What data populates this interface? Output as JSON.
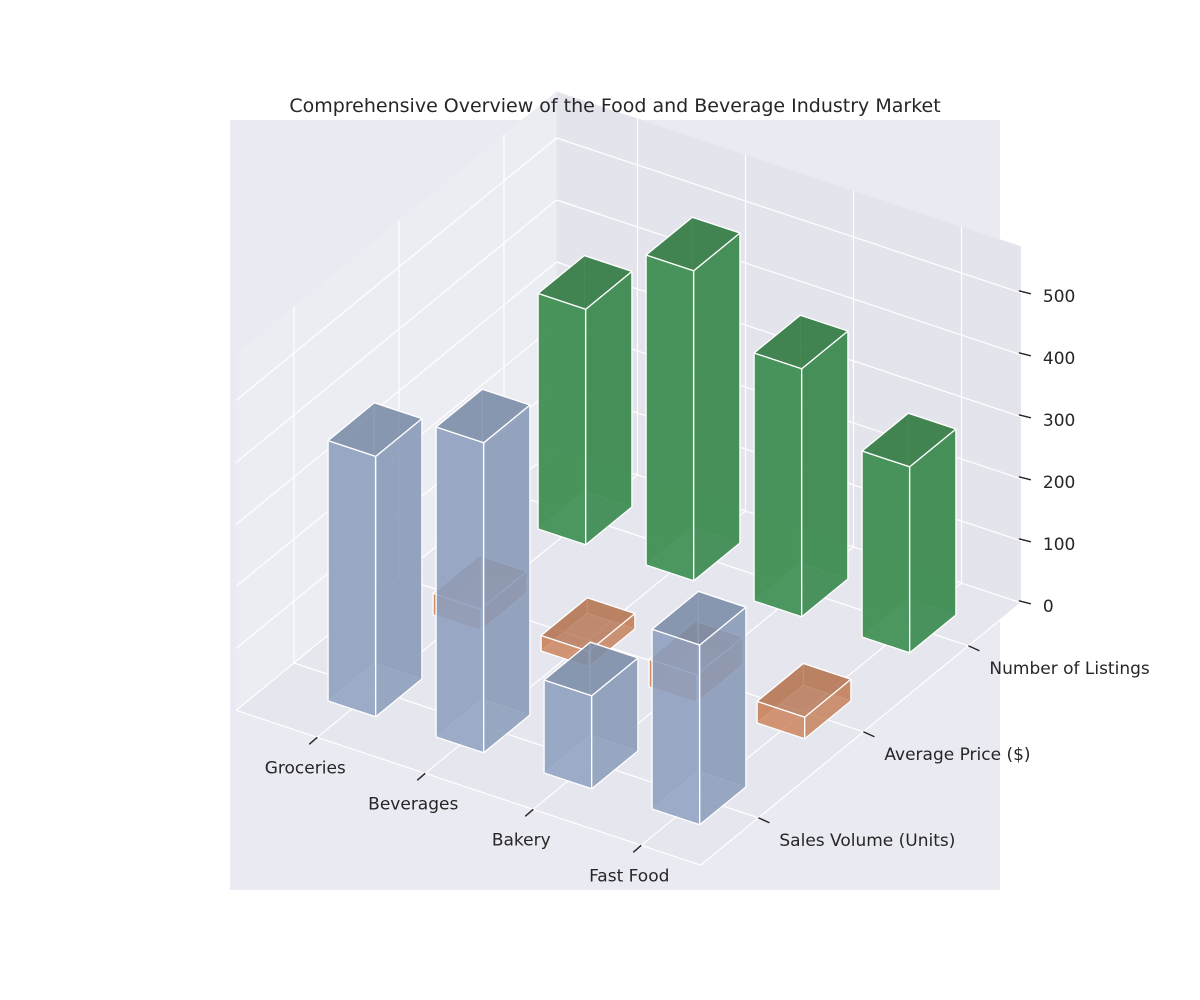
{
  "chart_data": {
    "type": "bar3d",
    "title": "Comprehensive Overview of the Food and Beverage Industry Market",
    "categories": [
      "Groceries",
      "Beverages",
      "Bakery",
      "Fast Food"
    ],
    "metrics": [
      "Sales Volume (Units)",
      "Average Price ($)",
      "Number of Listings"
    ],
    "zticks": [
      "0",
      "100",
      "200",
      "300",
      "400",
      "500"
    ],
    "zlim": [
      0,
      500
    ],
    "grid": true,
    "series": [
      {
        "name": "Sales Volume (Units)",
        "color": "#8ea0bf",
        "values": [
          420,
          500,
          150,
          290
        ]
      },
      {
        "name": "Average Price ($)",
        "color": "#c8784c",
        "values": [
          35,
          25,
          45,
          35
        ]
      },
      {
        "name": "Number of Listings",
        "color": "#3f8f52",
        "values": [
          380,
          500,
          400,
          300
        ]
      }
    ]
  }
}
